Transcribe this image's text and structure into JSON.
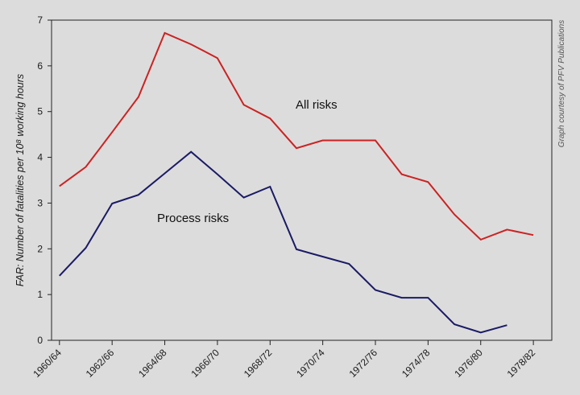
{
  "chart_data": {
    "type": "line",
    "ylabel": "FAR: Number of fatalities per 10⁸ working hours",
    "credit": "Graph courtesy of PFV Publications",
    "ylim": [
      0,
      7
    ],
    "yticks": [
      0,
      1,
      2,
      3,
      4,
      5,
      6,
      7
    ],
    "x_range": [
      -0.3,
      18.7
    ],
    "x_tick_positions": [
      0,
      2,
      4,
      6,
      8,
      10,
      12,
      14,
      16,
      18
    ],
    "x_tick_labels": [
      "1960/64",
      "1962/66",
      "1964/68",
      "1966/70",
      "1968/72",
      "1970/74",
      "1972/76",
      "1974/78",
      "1976/80",
      "1978/82"
    ],
    "grid": false,
    "series": [
      {
        "name": "All risks",
        "color": "#cc2222",
        "x": [
          0,
          1,
          2,
          3,
          4,
          5,
          6,
          7,
          8,
          9,
          10,
          11,
          12,
          13,
          14,
          15,
          16,
          17,
          18
        ],
        "values": [
          3.37,
          3.79,
          4.55,
          5.32,
          6.72,
          6.47,
          6.17,
          5.15,
          4.85,
          4.2,
          4.37,
          4.37,
          4.37,
          3.63,
          3.46,
          2.75,
          2.2,
          2.42,
          2.3
        ]
      },
      {
        "name": "Process risks",
        "color": "#1a1a66",
        "x": [
          0,
          1,
          2,
          3,
          4,
          5,
          6,
          7,
          8,
          9,
          10,
          11,
          12,
          13,
          14,
          15,
          16,
          17
        ],
        "values": [
          1.41,
          2.02,
          2.99,
          3.18,
          3.65,
          4.12,
          3.63,
          3.12,
          3.36,
          1.99,
          1.83,
          1.67,
          1.1,
          0.93,
          0.93,
          0.35,
          0.17,
          0.33
        ]
      }
    ]
  }
}
